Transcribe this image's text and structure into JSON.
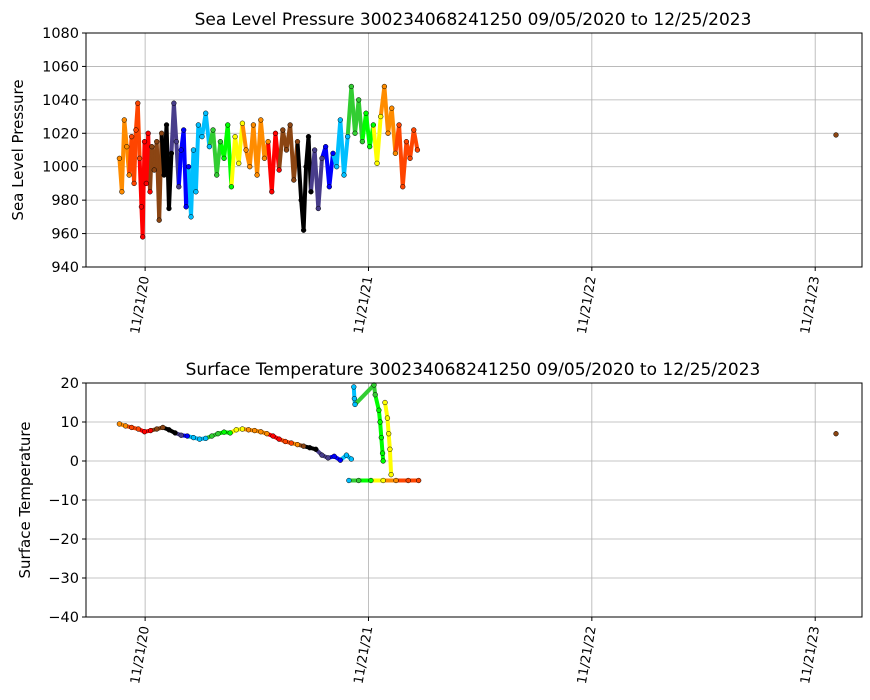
{
  "chart_data": [
    {
      "type": "scatter",
      "title": "Sea Level Pressure 300234068241250  09/05/2020 to 12/25/2023",
      "ylabel": "Sea Level Pressure",
      "ylim": [
        940,
        1080
      ],
      "yticks": [
        940,
        960,
        980,
        1000,
        1020,
        1040,
        1060,
        1080
      ],
      "ytick_labels": [
        "940",
        "960",
        "980",
        "1000",
        "1020",
        "1040",
        "1060",
        "1080"
      ],
      "x_range": [
        "2020-09-05",
        "2023-12-25"
      ],
      "xticks": [
        "2020-11-21",
        "2021-11-21",
        "2022-11-21",
        "2023-11-21"
      ],
      "xtick_labels": [
        "11/21/20",
        "11/21/21",
        "11/21/22",
        "11/21/23"
      ],
      "grid": true,
      "points": [
        {
          "x": "2020-10-10",
          "y": 1005,
          "color": "#ff8c00"
        },
        {
          "x": "2020-10-14",
          "y": 985,
          "color": "#ff8c00"
        },
        {
          "x": "2020-10-18",
          "y": 1028,
          "color": "#ff8c00"
        },
        {
          "x": "2020-10-22",
          "y": 1012,
          "color": "#ff8c00"
        },
        {
          "x": "2020-10-26",
          "y": 995,
          "color": "#ff8c00"
        },
        {
          "x": "2020-10-30",
          "y": 1018,
          "color": "#ff4500"
        },
        {
          "x": "2020-11-03",
          "y": 990,
          "color": "#ff4500"
        },
        {
          "x": "2020-11-06",
          "y": 1022,
          "color": "#ff4500"
        },
        {
          "x": "2020-11-09",
          "y": 1038,
          "color": "#ff4500"
        },
        {
          "x": "2020-11-12",
          "y": 1005,
          "color": "#ff4500"
        },
        {
          "x": "2020-11-15",
          "y": 976,
          "color": "#ff0000"
        },
        {
          "x": "2020-11-17",
          "y": 958,
          "color": "#ff0000"
        },
        {
          "x": "2020-11-20",
          "y": 1015,
          "color": "#ff0000"
        },
        {
          "x": "2020-11-23",
          "y": 990,
          "color": "#ff0000"
        },
        {
          "x": "2020-11-26",
          "y": 1020,
          "color": "#ff0000"
        },
        {
          "x": "2020-11-29",
          "y": 985,
          "color": "#ff0000"
        },
        {
          "x": "2020-12-02",
          "y": 1012,
          "color": "#8b4513"
        },
        {
          "x": "2020-12-06",
          "y": 998,
          "color": "#8b4513"
        },
        {
          "x": "2020-12-10",
          "y": 1015,
          "color": "#8b4513"
        },
        {
          "x": "2020-12-14",
          "y": 968,
          "color": "#8b4513"
        },
        {
          "x": "2020-12-18",
          "y": 1020,
          "color": "#8b4513"
        },
        {
          "x": "2020-12-22",
          "y": 995,
          "color": "#000000"
        },
        {
          "x": "2020-12-26",
          "y": 1025,
          "color": "#000000"
        },
        {
          "x": "2020-12-30",
          "y": 975,
          "color": "#000000"
        },
        {
          "x": "2021-01-03",
          "y": 1008,
          "color": "#000000"
        },
        {
          "x": "2021-01-07",
          "y": 1038,
          "color": "#483d8b"
        },
        {
          "x": "2021-01-11",
          "y": 1015,
          "color": "#483d8b"
        },
        {
          "x": "2021-01-15",
          "y": 988,
          "color": "#483d8b"
        },
        {
          "x": "2021-01-19",
          "y": 1010,
          "color": "#0000ff"
        },
        {
          "x": "2021-01-23",
          "y": 1022,
          "color": "#0000ff"
        },
        {
          "x": "2021-01-27",
          "y": 976,
          "color": "#0000ff"
        },
        {
          "x": "2021-01-31",
          "y": 1000,
          "color": "#0000ff"
        },
        {
          "x": "2021-02-04",
          "y": 970,
          "color": "#00bfff"
        },
        {
          "x": "2021-02-08",
          "y": 1010,
          "color": "#00bfff"
        },
        {
          "x": "2021-02-12",
          "y": 985,
          "color": "#00bfff"
        },
        {
          "x": "2021-02-16",
          "y": 1025,
          "color": "#00bfff"
        },
        {
          "x": "2021-02-22",
          "y": 1018,
          "color": "#00bfff"
        },
        {
          "x": "2021-02-28",
          "y": 1032,
          "color": "#00bfff"
        },
        {
          "x": "2021-03-06",
          "y": 1012,
          "color": "#00bfff"
        },
        {
          "x": "2021-03-12",
          "y": 1022,
          "color": "#32cd32"
        },
        {
          "x": "2021-03-18",
          "y": 995,
          "color": "#32cd32"
        },
        {
          "x": "2021-03-24",
          "y": 1015,
          "color": "#32cd32"
        },
        {
          "x": "2021-03-30",
          "y": 1005,
          "color": "#00ff00"
        },
        {
          "x": "2021-04-05",
          "y": 1025,
          "color": "#00ff00"
        },
        {
          "x": "2021-04-11",
          "y": 988,
          "color": "#00ff00"
        },
        {
          "x": "2021-04-17",
          "y": 1018,
          "color": "#ffff00"
        },
        {
          "x": "2021-04-23",
          "y": 1002,
          "color": "#ffff00"
        },
        {
          "x": "2021-04-29",
          "y": 1026,
          "color": "#ffff00"
        },
        {
          "x": "2021-05-05",
          "y": 1010,
          "color": "#ff8c00"
        },
        {
          "x": "2021-05-11",
          "y": 1000,
          "color": "#ff8c00"
        },
        {
          "x": "2021-05-17",
          "y": 1025,
          "color": "#ff8c00"
        },
        {
          "x": "2021-05-23",
          "y": 995,
          "color": "#ff8c00"
        },
        {
          "x": "2021-05-29",
          "y": 1028,
          "color": "#ff8c00"
        },
        {
          "x": "2021-06-04",
          "y": 1005,
          "color": "#ff8c00"
        },
        {
          "x": "2021-06-10",
          "y": 1015,
          "color": "#ff8c00"
        },
        {
          "x": "2021-06-16",
          "y": 985,
          "color": "#ff0000"
        },
        {
          "x": "2021-06-22",
          "y": 1020,
          "color": "#ff0000"
        },
        {
          "x": "2021-06-28",
          "y": 998,
          "color": "#ff0000"
        },
        {
          "x": "2021-07-04",
          "y": 1022,
          "color": "#8b4513"
        },
        {
          "x": "2021-07-10",
          "y": 1010,
          "color": "#8b4513"
        },
        {
          "x": "2021-07-16",
          "y": 1025,
          "color": "#8b4513"
        },
        {
          "x": "2021-07-22",
          "y": 992,
          "color": "#8b4513"
        },
        {
          "x": "2021-07-28",
          "y": 1015,
          "color": "#8b4513"
        },
        {
          "x": "2021-08-03",
          "y": 980,
          "color": "#000000"
        },
        {
          "x": "2021-08-07",
          "y": 962,
          "color": "#000000"
        },
        {
          "x": "2021-08-11",
          "y": 1000,
          "color": "#000000"
        },
        {
          "x": "2021-08-15",
          "y": 1018,
          "color": "#000000"
        },
        {
          "x": "2021-08-19",
          "y": 985,
          "color": "#000000"
        },
        {
          "x": "2021-08-25",
          "y": 1010,
          "color": "#483d8b"
        },
        {
          "x": "2021-08-31",
          "y": 975,
          "color": "#483d8b"
        },
        {
          "x": "2021-09-06",
          "y": 1005,
          "color": "#483d8b"
        },
        {
          "x": "2021-09-12",
          "y": 1012,
          "color": "#0000ff"
        },
        {
          "x": "2021-09-18",
          "y": 988,
          "color": "#0000ff"
        },
        {
          "x": "2021-09-24",
          "y": 1008,
          "color": "#0000ff"
        },
        {
          "x": "2021-09-30",
          "y": 1000,
          "color": "#00bfff"
        },
        {
          "x": "2021-10-06",
          "y": 1028,
          "color": "#00bfff"
        },
        {
          "x": "2021-10-12",
          "y": 995,
          "color": "#00bfff"
        },
        {
          "x": "2021-10-18",
          "y": 1018,
          "color": "#00bfff"
        },
        {
          "x": "2021-10-24",
          "y": 1048,
          "color": "#32cd32"
        },
        {
          "x": "2021-10-30",
          "y": 1020,
          "color": "#32cd32"
        },
        {
          "x": "2021-11-05",
          "y": 1040,
          "color": "#32cd32"
        },
        {
          "x": "2021-11-11",
          "y": 1015,
          "color": "#32cd32"
        },
        {
          "x": "2021-11-17",
          "y": 1032,
          "color": "#00ff00"
        },
        {
          "x": "2021-11-23",
          "y": 1012,
          "color": "#00ff00"
        },
        {
          "x": "2021-11-29",
          "y": 1025,
          "color": "#00ff00"
        },
        {
          "x": "2021-12-05",
          "y": 1002,
          "color": "#ffff00"
        },
        {
          "x": "2021-12-11",
          "y": 1030,
          "color": "#ffff00"
        },
        {
          "x": "2021-12-17",
          "y": 1048,
          "color": "#ff8c00"
        },
        {
          "x": "2021-12-23",
          "y": 1020,
          "color": "#ff8c00"
        },
        {
          "x": "2021-12-29",
          "y": 1035,
          "color": "#ff8c00"
        },
        {
          "x": "2022-01-04",
          "y": 1008,
          "color": "#ff8c00"
        },
        {
          "x": "2022-01-10",
          "y": 1025,
          "color": "#ff4500"
        },
        {
          "x": "2022-01-16",
          "y": 988,
          "color": "#ff4500"
        },
        {
          "x": "2022-01-22",
          "y": 1015,
          "color": "#ff4500"
        },
        {
          "x": "2022-01-28",
          "y": 1005,
          "color": "#ff4500"
        },
        {
          "x": "2022-02-03",
          "y": 1022,
          "color": "#ff4500"
        },
        {
          "x": "2022-02-09",
          "y": 1010,
          "color": "#ff4500"
        },
        {
          "x": "2023-12-25",
          "y": 1019,
          "color": "#8b4513"
        }
      ]
    },
    {
      "type": "scatter",
      "title": "Surface Temperature 300234068241250  09/05/2020 to 12/25/2023",
      "ylabel": "Surface Temperature",
      "ylim": [
        -40,
        20
      ],
      "yticks": [
        -40,
        -30,
        -20,
        -10,
        0,
        10,
        20
      ],
      "ytick_labels": [
        "−40",
        "−30",
        "−20",
        "−10",
        "0",
        "10",
        "20"
      ],
      "x_range": [
        "2020-09-05",
        "2023-12-25"
      ],
      "xticks": [
        "2020-11-21",
        "2021-11-21",
        "2022-11-21",
        "2023-11-21"
      ],
      "xtick_labels": [
        "11/21/20",
        "11/21/21",
        "11/21/22",
        "11/21/23"
      ],
      "grid": true,
      "points": [
        {
          "x": "2020-10-10",
          "y": 9.5,
          "color": "#ff8c00"
        },
        {
          "x": "2020-10-20",
          "y": 9.0,
          "color": "#ff8c00"
        },
        {
          "x": "2020-10-30",
          "y": 8.6,
          "color": "#ff4500"
        },
        {
          "x": "2020-11-10",
          "y": 8.2,
          "color": "#ff4500"
        },
        {
          "x": "2020-11-20",
          "y": 7.5,
          "color": "#ff0000"
        },
        {
          "x": "2020-11-30",
          "y": 7.8,
          "color": "#ff0000"
        },
        {
          "x": "2020-12-10",
          "y": 8.2,
          "color": "#8b4513"
        },
        {
          "x": "2020-12-20",
          "y": 8.6,
          "color": "#8b4513"
        },
        {
          "x": "2020-12-30",
          "y": 8.0,
          "color": "#000000"
        },
        {
          "x": "2021-01-09",
          "y": 7.2,
          "color": "#000000"
        },
        {
          "x": "2021-01-19",
          "y": 6.6,
          "color": "#483d8b"
        },
        {
          "x": "2021-01-29",
          "y": 6.4,
          "color": "#0000ff"
        },
        {
          "x": "2021-02-08",
          "y": 6.0,
          "color": "#00bfff"
        },
        {
          "x": "2021-02-18",
          "y": 5.6,
          "color": "#00bfff"
        },
        {
          "x": "2021-02-28",
          "y": 5.8,
          "color": "#00bfff"
        },
        {
          "x": "2021-03-10",
          "y": 6.4,
          "color": "#32cd32"
        },
        {
          "x": "2021-03-20",
          "y": 7.0,
          "color": "#32cd32"
        },
        {
          "x": "2021-03-30",
          "y": 7.4,
          "color": "#00ff00"
        },
        {
          "x": "2021-04-09",
          "y": 7.2,
          "color": "#00ff00"
        },
        {
          "x": "2021-04-19",
          "y": 8.0,
          "color": "#ffff00"
        },
        {
          "x": "2021-04-29",
          "y": 8.2,
          "color": "#ffff00"
        },
        {
          "x": "2021-05-09",
          "y": 8.0,
          "color": "#ff8c00"
        },
        {
          "x": "2021-05-19",
          "y": 7.8,
          "color": "#ff8c00"
        },
        {
          "x": "2021-05-29",
          "y": 7.5,
          "color": "#ff8c00"
        },
        {
          "x": "2021-06-08",
          "y": 7.0,
          "color": "#ff8c00"
        },
        {
          "x": "2021-06-18",
          "y": 6.4,
          "color": "#ff0000"
        },
        {
          "x": "2021-06-28",
          "y": 5.6,
          "color": "#ff0000"
        },
        {
          "x": "2021-07-08",
          "y": 5.0,
          "color": "#ff4500"
        },
        {
          "x": "2021-07-18",
          "y": 4.6,
          "color": "#ff4500"
        },
        {
          "x": "2021-07-28",
          "y": 4.2,
          "color": "#ff8c00"
        },
        {
          "x": "2021-08-07",
          "y": 3.8,
          "color": "#8b4513"
        },
        {
          "x": "2021-08-17",
          "y": 3.4,
          "color": "#000000"
        },
        {
          "x": "2021-08-27",
          "y": 3.0,
          "color": "#000000"
        },
        {
          "x": "2021-09-06",
          "y": 1.5,
          "color": "#483d8b"
        },
        {
          "x": "2021-09-16",
          "y": 0.8,
          "color": "#483d8b"
        },
        {
          "x": "2021-09-26",
          "y": 1.2,
          "color": "#0000ff"
        },
        {
          "x": "2021-10-06",
          "y": 0.2,
          "color": "#0000ff"
        },
        {
          "x": "2021-10-16",
          "y": 1.5,
          "color": "#00bfff"
        },
        {
          "x": "2021-10-24",
          "y": 0.5,
          "color": "#00bfff"
        },
        {
          "x": "2021-10-28",
          "y": 19.0,
          "color": "#00bfff"
        },
        {
          "x": "2021-10-29",
          "y": 16.0,
          "color": "#00bfff"
        },
        {
          "x": "2021-10-30",
          "y": 14.5,
          "color": "#00bfff"
        },
        {
          "x": "2021-11-30",
          "y": 19.5,
          "color": "#32cd32"
        },
        {
          "x": "2021-12-02",
          "y": 17.0,
          "color": "#32cd32"
        },
        {
          "x": "2021-12-08",
          "y": 13.0,
          "color": "#00ff00"
        },
        {
          "x": "2021-12-10",
          "y": 10.0,
          "color": "#00ff00"
        },
        {
          "x": "2021-12-12",
          "y": 6.0,
          "color": "#00ff00"
        },
        {
          "x": "2021-12-14",
          "y": 2.0,
          "color": "#00ff00"
        },
        {
          "x": "2021-12-15",
          "y": 0.0,
          "color": "#00ff00"
        },
        {
          "x": "2021-12-18",
          "y": 15.0,
          "color": "#ffff00"
        },
        {
          "x": "2021-12-22",
          "y": 11.0,
          "color": "#ffff00"
        },
        {
          "x": "2021-12-24",
          "y": 7.0,
          "color": "#ffff00"
        },
        {
          "x": "2021-12-26",
          "y": 3.0,
          "color": "#ffff00"
        },
        {
          "x": "2021-12-28",
          "y": -3.5,
          "color": "#ffff00"
        },
        {
          "x": "2021-10-20",
          "y": -5.0,
          "color": "#00bfff"
        },
        {
          "x": "2021-11-05",
          "y": -5.0,
          "color": "#32cd32"
        },
        {
          "x": "2021-11-25",
          "y": -5.0,
          "color": "#00ff00"
        },
        {
          "x": "2021-12-15",
          "y": -5.0,
          "color": "#ffff00"
        },
        {
          "x": "2022-01-05",
          "y": -5.0,
          "color": "#ff8c00"
        },
        {
          "x": "2022-01-25",
          "y": -5.0,
          "color": "#ff4500"
        },
        {
          "x": "2022-02-11",
          "y": -5.0,
          "color": "#ff4500"
        },
        {
          "x": "2023-12-25",
          "y": 7.0,
          "color": "#8b4513"
        }
      ]
    }
  ]
}
